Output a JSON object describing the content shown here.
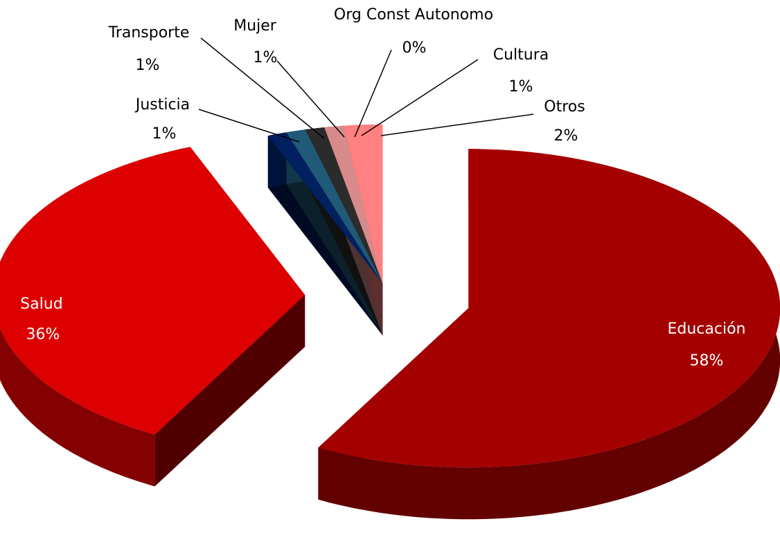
{
  "chart_data": {
    "type": "pie",
    "categories": [
      "Educación",
      "Salud",
      "Justicia",
      "Transporte",
      "Mujer",
      "Org Const Autonomo",
      "Cultura",
      "Otros"
    ],
    "values": [
      58,
      36,
      1,
      1,
      1,
      0,
      1,
      2
    ],
    "value_labels": [
      "58%",
      "36%",
      "1%",
      "1%",
      "1%",
      "0%",
      "1%",
      "2%"
    ],
    "colors": [
      "#a50000",
      "#dd0000",
      "#002060",
      "#1f5a78",
      "#2b2b2b",
      "#3a3a3a",
      "#d88a8a",
      "#ff8080"
    ]
  }
}
